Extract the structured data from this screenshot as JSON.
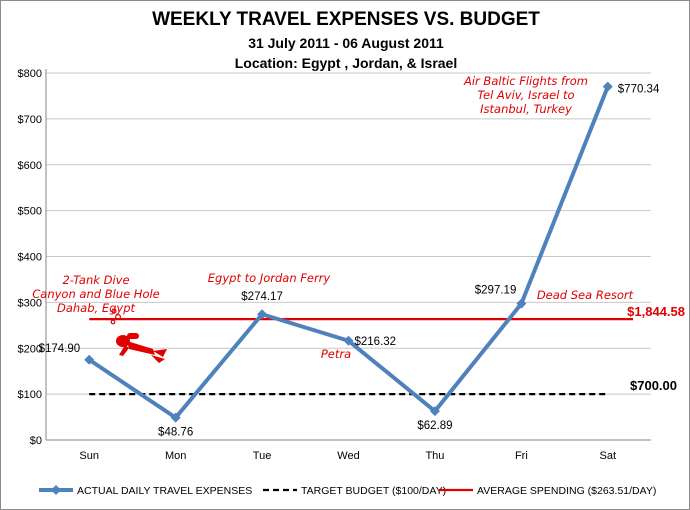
{
  "chart_data": {
    "type": "line",
    "title": "WEEKLY TRAVEL EXPENSES VS. BUDGET",
    "subtitle_dates": "31 July 2011 - 06 August 2011",
    "subtitle_location": "Location: Egypt , Jordan, & Israel",
    "categories": [
      "Sun",
      "Mon",
      "Tue",
      "Wed",
      "Thu",
      "Fri",
      "Sat"
    ],
    "ylim": [
      0,
      800
    ],
    "yticks": [
      "$0",
      "$100",
      "$200",
      "$300",
      "$400",
      "$500",
      "$600",
      "$700",
      "$800"
    ],
    "grid": true,
    "legend_position": "bottom",
    "series": [
      {
        "name": "ACTUAL DAILY TRAVEL EXPENSES",
        "values": [
          174.9,
          48.76,
          274.17,
          216.32,
          62.89,
          297.19,
          770.34
        ],
        "labels": [
          "$174.90",
          "$48.76",
          "$274.17",
          "$216.32",
          "$62.89",
          "$297.19",
          "$770.34"
        ],
        "color": "#4f81bd"
      },
      {
        "name": "TARGET BUDGET ($100/DAY)",
        "value": 100,
        "color": "#000000",
        "end_label": "$700.00"
      },
      {
        "name": "AVERAGE SPENDING ($263.51/DAY)",
        "value": 263.51,
        "color": "#e00000",
        "end_label": "$1,844.58"
      }
    ],
    "annotations": [
      {
        "category": "Sun",
        "lines": [
          "2-Tank Dive",
          "Canyon and Blue Hole",
          "Dahab, Egypt"
        ]
      },
      {
        "category": "Tue",
        "lines": [
          "Egypt to Jordan Ferry"
        ]
      },
      {
        "category": "Wed",
        "lines": [
          "Petra"
        ]
      },
      {
        "category": "Fri",
        "lines": [
          "Dead Sea Resort"
        ]
      },
      {
        "category": "Sat",
        "lines": [
          "Air Baltic Flights from",
          "Tel Aviv, Israel to",
          "Istanbul, Turkey"
        ]
      }
    ]
  },
  "colors": {
    "actual": "#4f81bd",
    "target": "#000000",
    "average": "#e00000",
    "grid": "#c8c8c8"
  },
  "icons": {
    "diver": "scuba-diver-icon"
  }
}
